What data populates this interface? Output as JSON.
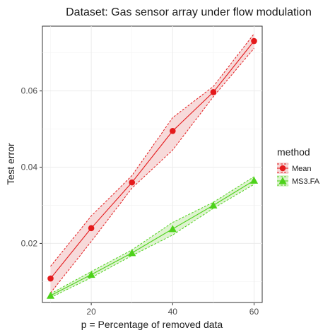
{
  "chart_data": {
    "type": "line",
    "title": "Dataset: Gas sensor array under flow modulation",
    "xlabel": "p = Percentage of removed data",
    "ylabel": "Test error",
    "x": [
      10,
      20,
      30,
      40,
      50,
      60
    ],
    "xlim": [
      8,
      62
    ],
    "ylim": [
      0.0045,
      0.077
    ],
    "x_ticks": [
      20,
      40,
      60
    ],
    "y_ticks": [
      0.02,
      0.04,
      0.06
    ],
    "x_tick_labels": [
      "20",
      "40",
      "60"
    ],
    "y_tick_labels": [
      "0.02",
      "0.04",
      "0.06"
    ],
    "grid": true,
    "legend": {
      "title": "method",
      "position": "right"
    },
    "series": [
      {
        "name": "Mean",
        "color": "#e41a1c",
        "fill": "#f6d6d6",
        "marker": "circle",
        "values": [
          0.0108,
          0.024,
          0.036,
          0.0495,
          0.0597,
          0.0731
        ],
        "lower": [
          0.007,
          0.0205,
          0.0345,
          0.0445,
          0.0585,
          0.0712
        ],
        "upper": [
          0.014,
          0.0272,
          0.0378,
          0.053,
          0.0612,
          0.075
        ]
      },
      {
        "name": "MS3.FA",
        "color": "#4dd21a",
        "fill": "#dcf2cc",
        "marker": "triangle",
        "values": [
          0.0063,
          0.0118,
          0.0175,
          0.0238,
          0.03,
          0.0365
        ],
        "lower": [
          0.0058,
          0.011,
          0.0168,
          0.0222,
          0.0292,
          0.0355
        ],
        "upper": [
          0.0068,
          0.0126,
          0.0183,
          0.0255,
          0.0308,
          0.0375
        ]
      }
    ]
  }
}
